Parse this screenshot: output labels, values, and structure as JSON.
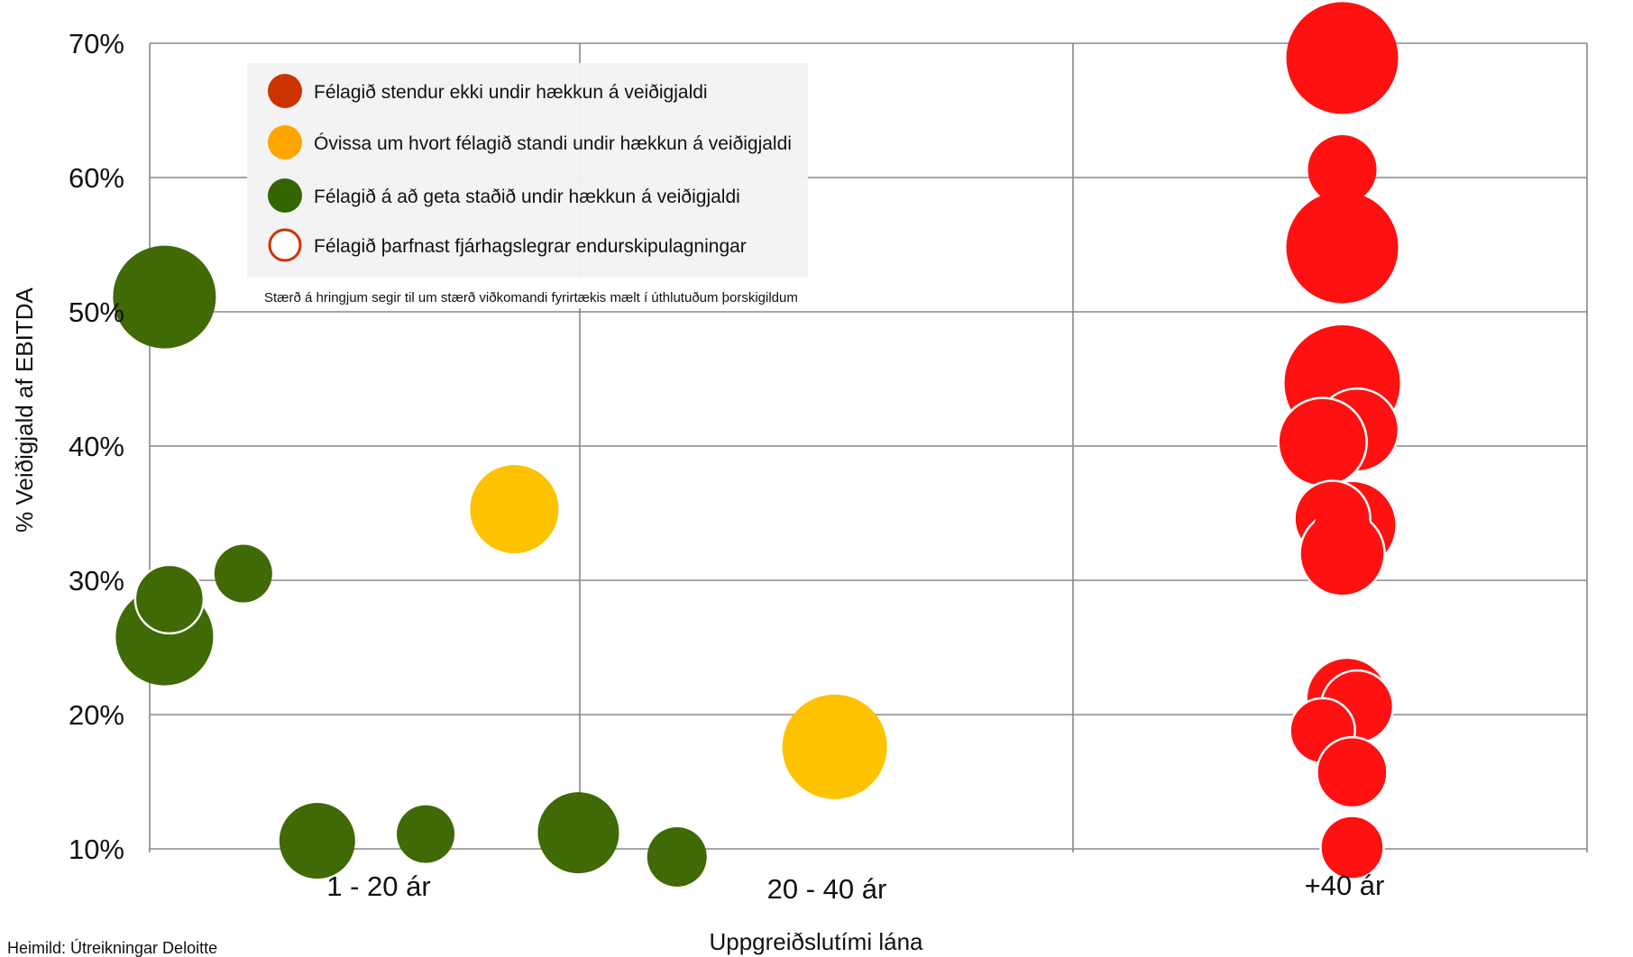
{
  "chart_data": {
    "type": "scatter",
    "subtype": "bubble",
    "ylabel": "% Veiðigjald af EBITDA",
    "xlabel": "Uppgreiðslutími lána",
    "categories": [
      "1 - 20 ár",
      "20 - 40 ár",
      "+40 ár"
    ],
    "y_ticks": [
      "10%",
      "20%",
      "30%",
      "40%",
      "50%",
      "60%",
      "70%"
    ],
    "ylim": [
      10,
      70
    ],
    "grid": true,
    "legend_position": "top-left",
    "legend": [
      {
        "label": "Félagið stendur ekki undir hækkun á veiðigjaldi",
        "color": "#cc3300",
        "style": "filled"
      },
      {
        "label": "Óvissa um hvort félagið standi undir hækkun á veiðigjaldi",
        "color": "#ffa500",
        "style": "filled"
      },
      {
        "label": "Félagið á að geta staðið undir hækkun á veiðigjaldi",
        "color": "#336600",
        "style": "filled"
      },
      {
        "label": "Félagið þarfnast fjárhagslegrar endurskipulagningar",
        "color": "#cc3300",
        "style": "outline"
      }
    ],
    "note": "Stærð á hringjum segir til um  stærð viðkomandi fyrirtækis mælt í úthlutuðum þorskigildum",
    "source": "Heimild: Útreikningar Deloitte",
    "colors": {
      "red": "#ff1111",
      "yellow": "#ffc200",
      "green": "#3f6a05",
      "grid": "#888888"
    },
    "bubbles": [
      {
        "group": "green",
        "x": 1.03,
        "y": 51.1,
        "size": 57,
        "restructure": false
      },
      {
        "group": "green",
        "x": 1.03,
        "y": 25.8,
        "size": 54,
        "restructure": false
      },
      {
        "group": "green",
        "x": 1.04,
        "y": 28.6,
        "size": 38,
        "restructure": true
      },
      {
        "group": "green",
        "x": 1.19,
        "y": 30.5,
        "size": 32,
        "restructure": false
      },
      {
        "group": "green",
        "x": 1.34,
        "y": 10.6,
        "size": 42,
        "restructure": false
      },
      {
        "group": "green",
        "x": 1.56,
        "y": 11.1,
        "size": 32,
        "restructure": false
      },
      {
        "group": "green",
        "x": 1.87,
        "y": 11.2,
        "size": 45,
        "restructure": false
      },
      {
        "group": "green",
        "x": 2.07,
        "y": 9.4,
        "size": 33,
        "restructure": false
      },
      {
        "group": "yellow",
        "x": 1.74,
        "y": 35.3,
        "size": 49,
        "restructure": false
      },
      {
        "group": "yellow",
        "x": 2.39,
        "y": 17.6,
        "size": 58,
        "restructure": false
      },
      {
        "group": "red",
        "x": 3.42,
        "y": 68.9,
        "size": 62,
        "restructure": false
      },
      {
        "group": "red",
        "x": 3.42,
        "y": 60.6,
        "size": 38,
        "restructure": false
      },
      {
        "group": "red",
        "x": 3.42,
        "y": 54.8,
        "size": 62,
        "restructure": false
      },
      {
        "group": "red",
        "x": 3.42,
        "y": 44.7,
        "size": 64,
        "restructure": false
      },
      {
        "group": "red",
        "x": 3.45,
        "y": 41.2,
        "size": 46,
        "restructure": true
      },
      {
        "group": "red",
        "x": 3.38,
        "y": 40.3,
        "size": 49,
        "restructure": true
      },
      {
        "group": "red",
        "x": 3.44,
        "y": 34.1,
        "size": 48,
        "restructure": false
      },
      {
        "group": "red",
        "x": 3.4,
        "y": 34.6,
        "size": 42,
        "restructure": true
      },
      {
        "group": "red",
        "x": 3.42,
        "y": 32.0,
        "size": 47,
        "restructure": true
      },
      {
        "group": "red",
        "x": 3.42,
        "y": 33.7,
        "size": 32,
        "restructure": false
      },
      {
        "group": "red",
        "x": 3.43,
        "y": 21.2,
        "size": 44,
        "restructure": false
      },
      {
        "group": "red",
        "x": 3.45,
        "y": 20.6,
        "size": 40,
        "restructure": true
      },
      {
        "group": "red",
        "x": 3.38,
        "y": 18.8,
        "size": 36,
        "restructure": true
      },
      {
        "group": "red",
        "x": 3.44,
        "y": 15.7,
        "size": 39,
        "restructure": true
      },
      {
        "group": "red",
        "x": 3.44,
        "y": 10.1,
        "size": 35,
        "restructure": true
      }
    ]
  }
}
